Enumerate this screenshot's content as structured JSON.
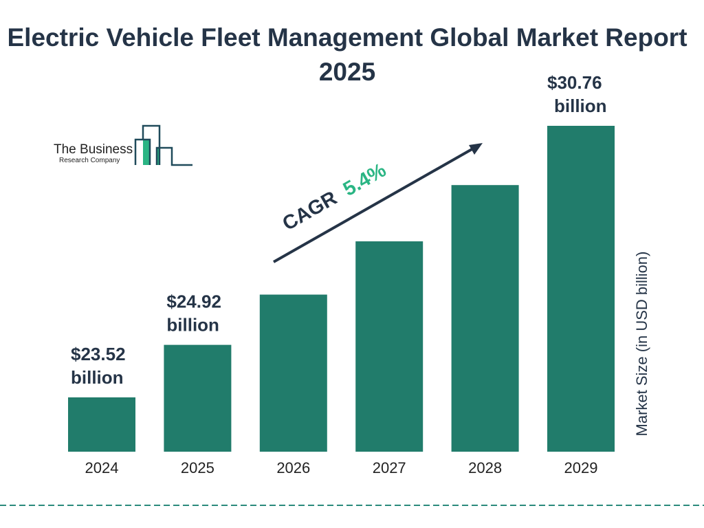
{
  "chart_data": {
    "type": "bar",
    "title": "Electric Vehicle Fleet Management Global Market Report 2025",
    "categories": [
      "2024",
      "2025",
      "2026",
      "2027",
      "2028",
      "2029"
    ],
    "values": [
      23.52,
      24.92,
      26.26,
      27.68,
      29.18,
      30.76
    ],
    "data_labels": [
      {
        "index": 0,
        "line1": "$23.52",
        "line2": "billion"
      },
      {
        "index": 1,
        "line1": "$24.92",
        "line2": "billion"
      },
      {
        "index": 5,
        "line1": "$30.76",
        "line2": "billion"
      }
    ],
    "ylabel": "Market Size (in USD billion)",
    "xlabel": "",
    "grid": false,
    "annotation": {
      "label": "CAGR",
      "value": "5.4%"
    },
    "colors": {
      "bar": "#217c6b",
      "text": "#253447",
      "cagr": "#2bb584",
      "dash": "#2a8a7c"
    }
  },
  "logo": {
    "line1": "The Business",
    "line2": "Research Company"
  }
}
